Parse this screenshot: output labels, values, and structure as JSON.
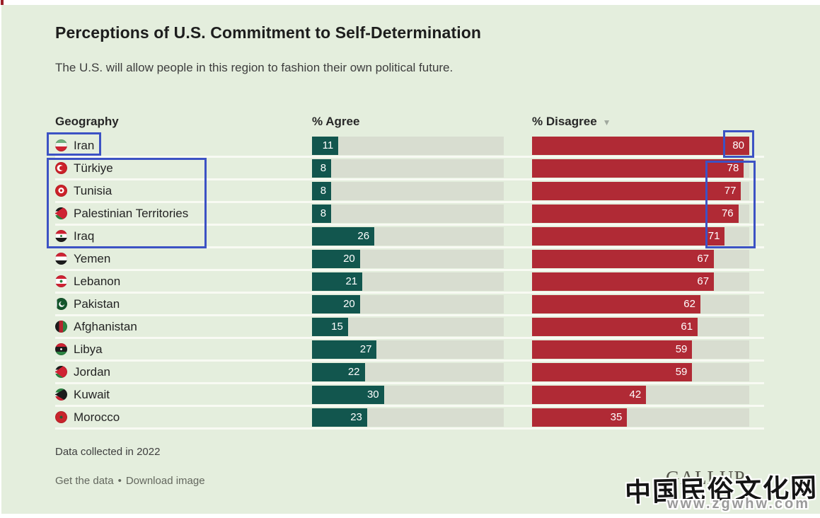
{
  "header": {
    "title": "Perceptions of U.S. Commitment to Self-Determination",
    "subtitle": "The U.S. will allow people in this region to fashion their own political future."
  },
  "table": {
    "columns": [
      {
        "label": "Geography"
      },
      {
        "label": "% Agree"
      },
      {
        "label": "% Disagree",
        "sort_icon": "sort-desc-triangle",
        "sort_glyph": "▼"
      }
    ],
    "rows": [
      {
        "country": "Iran",
        "flag": "iran-flag",
        "agree": 11,
        "disagree": 80
      },
      {
        "country": "Türkiye",
        "flag": "turkiye-flag",
        "agree": 8,
        "disagree": 78
      },
      {
        "country": "Tunisia",
        "flag": "tunisia-flag",
        "agree": 8,
        "disagree": 77
      },
      {
        "country": "Palestinian Territories",
        "flag": "palestinian-territories-flag",
        "agree": 8,
        "disagree": 76
      },
      {
        "country": "Iraq",
        "flag": "iraq-flag",
        "agree": 26,
        "disagree": 71
      },
      {
        "country": "Yemen",
        "flag": "yemen-flag",
        "agree": 20,
        "disagree": 67
      },
      {
        "country": "Lebanon",
        "flag": "lebanon-flag",
        "agree": 21,
        "disagree": 67
      },
      {
        "country": "Pakistan",
        "flag": "pakistan-flag",
        "agree": 20,
        "disagree": 62
      },
      {
        "country": "Afghanistan",
        "flag": "afghanistan-flag",
        "agree": 15,
        "disagree": 61
      },
      {
        "country": "Libya",
        "flag": "libya-flag",
        "agree": 27,
        "disagree": 59
      },
      {
        "country": "Jordan",
        "flag": "jordan-flag",
        "agree": 22,
        "disagree": 59
      },
      {
        "country": "Kuwait",
        "flag": "kuwait-flag",
        "agree": 30,
        "disagree": 42
      },
      {
        "country": "Morocco",
        "flag": "morocco-flag",
        "agree": 23,
        "disagree": 35
      }
    ]
  },
  "chart_data": {
    "type": "bar",
    "orientation": "horizontal",
    "title": "Perceptions of U.S. Commitment to Self-Determination",
    "subtitle": "The U.S. will allow people in this region to fashion their own political future.",
    "categories": [
      "Iran",
      "Türkiye",
      "Tunisia",
      "Palestinian Territories",
      "Iraq",
      "Yemen",
      "Lebanon",
      "Pakistan",
      "Afghanistan",
      "Libya",
      "Jordan",
      "Kuwait",
      "Morocco"
    ],
    "series": [
      {
        "name": "% Agree",
        "values": [
          11,
          8,
          8,
          8,
          26,
          20,
          21,
          20,
          15,
          27,
          22,
          30,
          23
        ]
      },
      {
        "name": "% Disagree",
        "values": [
          80,
          78,
          77,
          76,
          71,
          67,
          67,
          62,
          61,
          59,
          59,
          42,
          35
        ]
      }
    ],
    "sort": "% Disagree descending",
    "note": "Data collected in 2022",
    "xmax": 80,
    "grid": false,
    "data_labels": true
  },
  "footer": {
    "note": "Data collected in 2022",
    "link_get_data": "Get the data",
    "separator": "•",
    "link_download": "Download image"
  },
  "brand": {
    "logo_text": "GALLUP"
  },
  "watermark": {
    "line1": "中国民俗文化网",
    "line2": "www.zgwhw.com"
  },
  "colors": {
    "background": "#e4eedd",
    "agree_bar": "#12564e",
    "disagree_bar": "#b02a35",
    "bar_track": "#d8ddd0",
    "annotation_box": "#3c52c4"
  }
}
